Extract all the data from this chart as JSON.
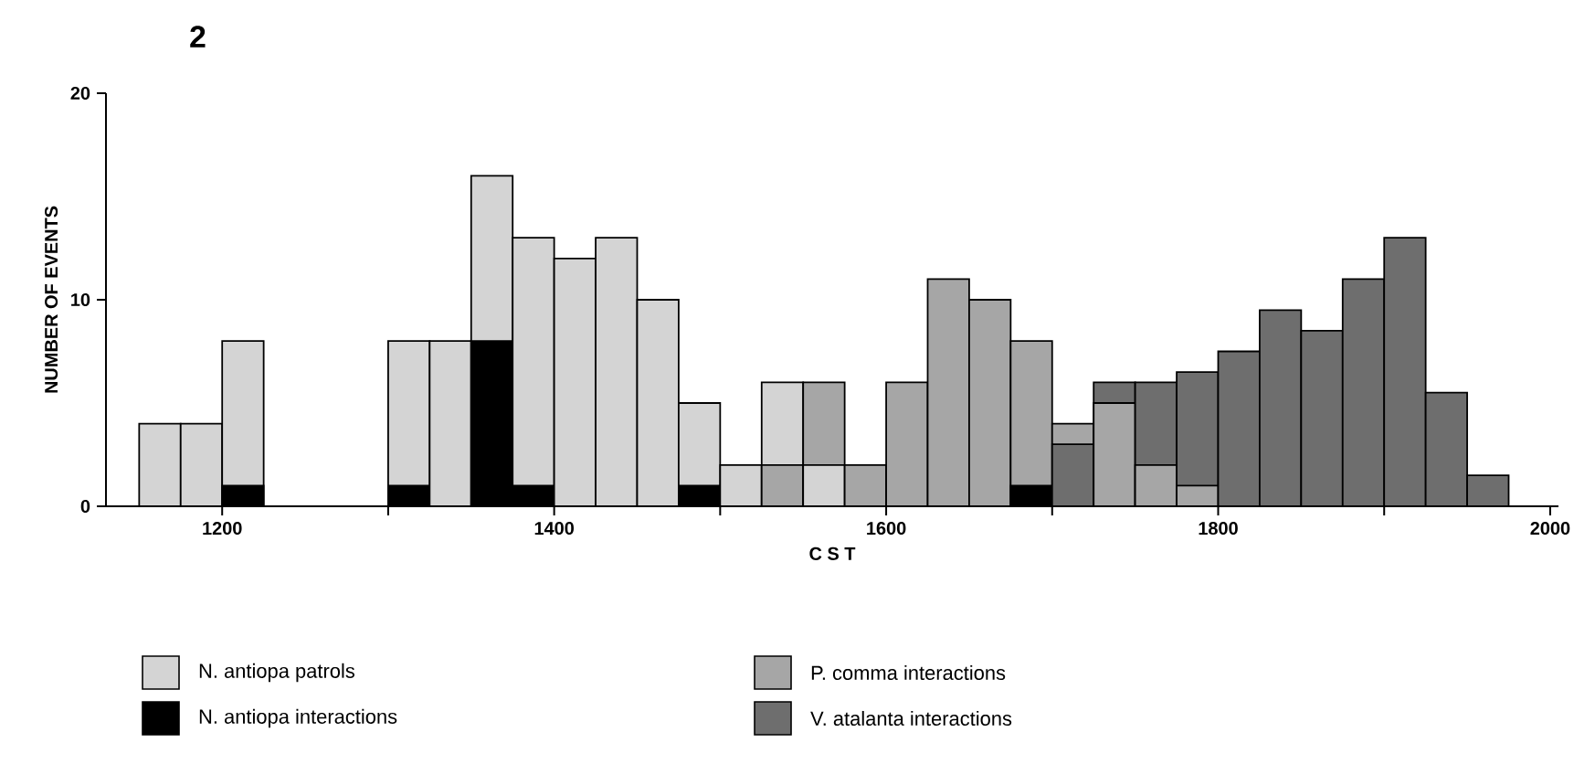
{
  "chart_data": {
    "type": "histogram",
    "title": "2",
    "xlabel": "C S T",
    "ylabel": "NUMBER OF EVENTS",
    "bins": [
      1150,
      1175,
      1200,
      1225,
      1250,
      1275,
      1300,
      1325,
      1350,
      1375,
      1400,
      1425,
      1450,
      1475,
      1500,
      1525,
      1550,
      1575,
      1600,
      1625,
      1650,
      1675,
      1700,
      1725,
      1750,
      1775,
      1800,
      1825,
      1850,
      1875,
      1900,
      1925,
      1950,
      1975
    ],
    "series": [
      {
        "name": "N. antiopa patrols",
        "color": "#d4d4d4",
        "values": [
          4,
          4,
          8,
          null,
          null,
          null,
          8,
          8,
          16,
          13,
          12,
          13,
          10,
          5,
          2,
          6,
          2,
          null,
          null,
          null,
          null,
          null,
          null,
          null,
          null,
          null,
          null,
          null,
          null,
          null,
          null,
          null,
          null
        ]
      },
      {
        "name": "N. antiopa interactions",
        "color": "#000000",
        "values": [
          null,
          null,
          1,
          null,
          null,
          null,
          1,
          null,
          8,
          1,
          null,
          null,
          null,
          1,
          null,
          null,
          null,
          null,
          null,
          null,
          null,
          1,
          null,
          null,
          null,
          null,
          null,
          null,
          null,
          null,
          null,
          null,
          null
        ]
      },
      {
        "name": "P. comma interactions",
        "color": "#a6a6a6",
        "values": [
          null,
          null,
          null,
          null,
          null,
          null,
          null,
          null,
          null,
          null,
          null,
          null,
          null,
          null,
          null,
          2,
          6,
          2,
          6,
          11,
          10,
          8,
          4,
          5,
          2,
          1,
          null,
          null,
          null,
          null,
          null,
          null,
          null
        ]
      },
      {
        "name": "V. atalanta interactions",
        "color": "#6e6e6e",
        "values": [
          null,
          null,
          null,
          null,
          null,
          null,
          null,
          null,
          null,
          null,
          null,
          null,
          null,
          null,
          null,
          null,
          null,
          null,
          null,
          null,
          null,
          null,
          3,
          6,
          6,
          6.5,
          7.5,
          9.5,
          8.5,
          11,
          13,
          5.5,
          1.5
        ]
      }
    ],
    "xlim": [
      1130,
      2005
    ],
    "ylim": [
      0,
      20
    ],
    "xticks": [
      1200,
      {
        "value": 1300,
        "label": null
      },
      1400,
      {
        "value": 1500,
        "label": null
      },
      1600,
      {
        "value": 1700,
        "label": null
      },
      1800,
      {
        "value": 1900,
        "label": null
      },
      2000
    ],
    "yticks": [
      0,
      10,
      20
    ],
    "legend": "bottom"
  }
}
